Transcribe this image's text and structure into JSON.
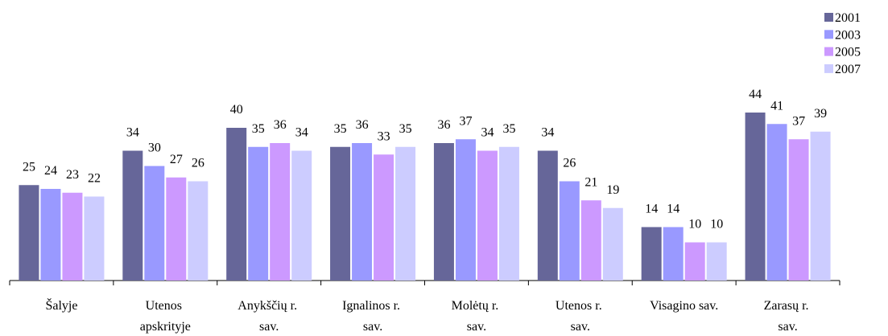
{
  "chart_data": {
    "type": "bar",
    "categories": [
      "Šalyje",
      "Utenos apskrityje",
      "Anykščių r. sav.",
      "Ignalinos r. sav.",
      "Molėtų r. sav.",
      "Utenos r. sav.",
      "Visagino sav.",
      "Zarasų r. sav."
    ],
    "series": [
      {
        "name": "2001",
        "color": "#666699",
        "values": [
          25,
          34,
          40,
          35,
          36,
          34,
          14,
          44
        ]
      },
      {
        "name": "2003",
        "color": "#9999ff",
        "values": [
          24,
          30,
          35,
          36,
          37,
          26,
          14,
          41
        ]
      },
      {
        "name": "2005",
        "color": "#cc99ff",
        "values": [
          23,
          27,
          36,
          33,
          34,
          21,
          10,
          37
        ]
      },
      {
        "name": "2007",
        "color": "#ccccff",
        "values": [
          22,
          26,
          34,
          35,
          35,
          19,
          10,
          39
        ]
      }
    ],
    "ylim": [
      0,
      50
    ],
    "legend": "top-right"
  }
}
